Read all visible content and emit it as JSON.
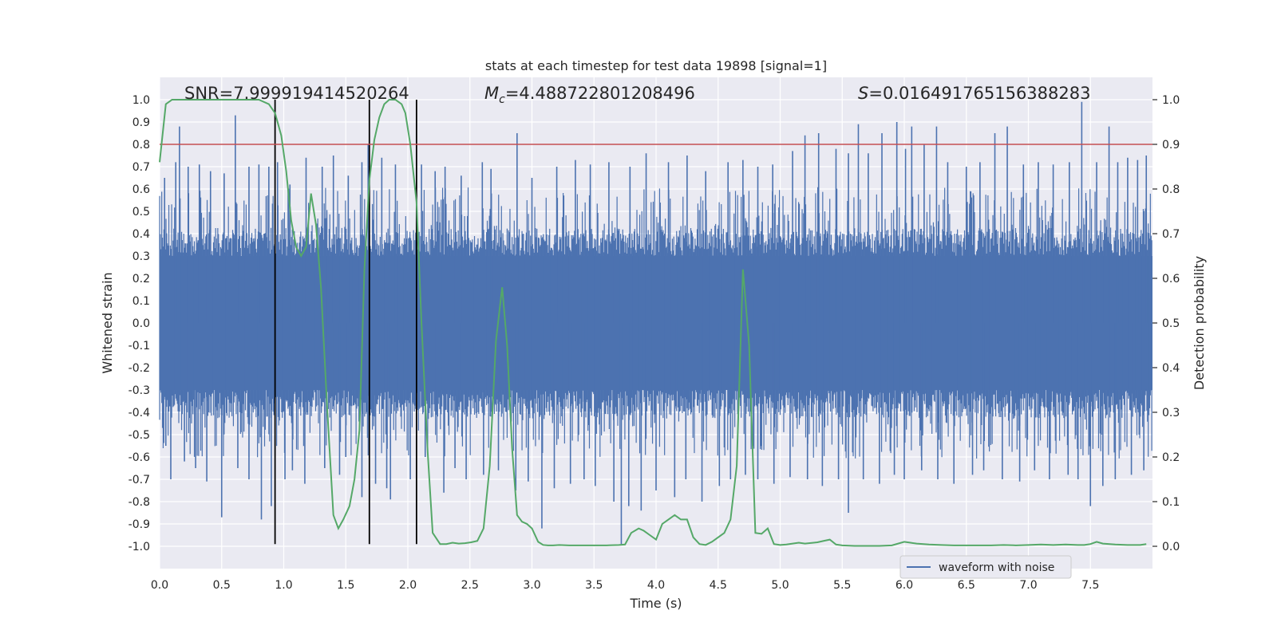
{
  "chart_data": {
    "type": "line",
    "title": "stats at each timestep for test data 19898 [signal=1]",
    "xlabel": "Time (s)",
    "ylabel_left": "Whitened strain",
    "ylabel_right": "Detection probability",
    "xlim": [
      0.0,
      8.0
    ],
    "ylim_left": [
      -1.1,
      1.1
    ],
    "ylim_right": [
      -0.05,
      1.05
    ],
    "xticks": [
      "0.0",
      "0.5",
      "1.0",
      "1.5",
      "2.0",
      "2.5",
      "3.0",
      "3.5",
      "4.0",
      "4.5",
      "5.0",
      "5.5",
      "6.0",
      "6.5",
      "7.0",
      "7.5"
    ],
    "xtick_values": [
      0.0,
      0.5,
      1.0,
      1.5,
      2.0,
      2.5,
      3.0,
      3.5,
      4.0,
      4.5,
      5.0,
      5.5,
      6.0,
      6.5,
      7.0,
      7.5
    ],
    "yticks_left": [
      "1.0",
      "0.9",
      "0.8",
      "0.7",
      "0.6",
      "0.5",
      "0.4",
      "0.3",
      "0.2",
      "0.1",
      "0.0",
      "-0.1",
      "-0.2",
      "-0.3",
      "-0.4",
      "-0.5",
      "-0.6",
      "-0.7",
      "-0.8",
      "-0.9",
      "-1.0"
    ],
    "ytick_values_left": [
      1.0,
      0.9,
      0.8,
      0.7,
      0.6,
      0.5,
      0.4,
      0.3,
      0.2,
      0.1,
      0.0,
      -0.1,
      -0.2,
      -0.3,
      -0.4,
      -0.5,
      -0.6,
      -0.7,
      -0.8,
      -0.9,
      -1.0
    ],
    "yticks_right": [
      "1.0",
      "0.9",
      "0.8",
      "0.7",
      "0.6",
      "0.5",
      "0.4",
      "0.3",
      "0.2",
      "0.1",
      "0.0"
    ],
    "ytick_values_right": [
      1.0,
      0.9,
      0.8,
      0.7,
      0.6,
      0.5,
      0.4,
      0.3,
      0.2,
      0.1,
      0.0
    ],
    "grid": true,
    "legend": {
      "entries": [
        "waveform with noise"
      ],
      "placement": "lower-right"
    },
    "annotations": {
      "snr": "SNR=7.999919414520264",
      "mc_symbol": "M",
      "mc_sub": "c",
      "mc_value": "=4.488722801208496",
      "s_symbol": "S",
      "s_value": "=0.016491765156388283"
    },
    "threshold": {
      "value": 0.8,
      "axis": "left",
      "color": "#c44e52"
    },
    "vertical_lines": [
      0.93,
      1.69,
      2.07
    ],
    "vertical_line_range": [
      -0.99,
      1.0
    ],
    "series": [
      {
        "name": "waveform with noise",
        "axis": "left",
        "color": "#4c72b0",
        "description_kind": "noise-band",
        "band_upper": 0.38,
        "band_lower": -0.37,
        "spikes_positive": [
          [
            0.04,
            0.65
          ],
          [
            0.13,
            0.72
          ],
          [
            0.16,
            0.88
          ],
          [
            0.23,
            0.7
          ],
          [
            0.32,
            0.71
          ],
          [
            0.41,
            0.68
          ],
          [
            0.52,
            0.67
          ],
          [
            0.61,
            0.93
          ],
          [
            0.72,
            0.7
          ],
          [
            0.8,
            0.71
          ],
          [
            0.88,
            0.7
          ],
          [
            0.95,
            0.72
          ],
          [
            1.05,
            0.62
          ],
          [
            1.18,
            0.74
          ],
          [
            1.31,
            0.7
          ],
          [
            1.4,
            0.75
          ],
          [
            1.52,
            0.66
          ],
          [
            1.63,
            0.72
          ],
          [
            1.68,
            0.8
          ],
          [
            1.79,
            0.74
          ],
          [
            1.9,
            0.71
          ],
          [
            2.11,
            0.71
          ],
          [
            2.22,
            0.68
          ],
          [
            2.3,
            0.7
          ],
          [
            2.43,
            0.66
          ],
          [
            2.6,
            0.72
          ],
          [
            2.67,
            0.69
          ],
          [
            2.88,
            0.85
          ],
          [
            3.0,
            0.65
          ],
          [
            3.2,
            0.7
          ],
          [
            3.35,
            0.73
          ],
          [
            3.47,
            0.71
          ],
          [
            3.62,
            0.72
          ],
          [
            3.79,
            0.7
          ],
          [
            3.92,
            0.76
          ],
          [
            4.1,
            0.72
          ],
          [
            4.25,
            0.75
          ],
          [
            4.4,
            0.68
          ],
          [
            4.58,
            0.72
          ],
          [
            4.7,
            0.73
          ],
          [
            4.82,
            0.7
          ],
          [
            4.94,
            0.71
          ],
          [
            5.1,
            0.77
          ],
          [
            5.2,
            0.84
          ],
          [
            5.31,
            0.85
          ],
          [
            5.45,
            0.78
          ],
          [
            5.55,
            0.76
          ],
          [
            5.63,
            0.89
          ],
          [
            5.71,
            0.76
          ],
          [
            5.82,
            0.85
          ],
          [
            5.94,
            0.9
          ],
          [
            6.01,
            0.78
          ],
          [
            6.06,
            0.88
          ],
          [
            6.16,
            0.8
          ],
          [
            6.26,
            0.88
          ],
          [
            6.35,
            0.72
          ],
          [
            6.5,
            0.7
          ],
          [
            6.61,
            0.72
          ],
          [
            6.73,
            0.85
          ],
          [
            6.83,
            0.88
          ],
          [
            6.96,
            0.71
          ],
          [
            7.08,
            0.72
          ],
          [
            7.2,
            0.71
          ],
          [
            7.33,
            0.72
          ],
          [
            7.43,
            0.99
          ],
          [
            7.55,
            0.72
          ],
          [
            7.65,
            0.88
          ],
          [
            7.72,
            0.72
          ],
          [
            7.8,
            0.74
          ],
          [
            7.88,
            0.73
          ],
          [
            7.95,
            0.75
          ]
        ],
        "spikes_negative": [
          [
            0.05,
            -0.55
          ],
          [
            0.09,
            -0.7
          ],
          [
            0.2,
            -0.62
          ],
          [
            0.29,
            -0.65
          ],
          [
            0.38,
            -0.71
          ],
          [
            0.5,
            -0.87
          ],
          [
            0.63,
            -0.65
          ],
          [
            0.72,
            -0.7
          ],
          [
            0.82,
            -0.88
          ],
          [
            0.9,
            -0.82
          ],
          [
            1.01,
            -0.7
          ],
          [
            1.07,
            -0.66
          ],
          [
            1.17,
            -0.72
          ],
          [
            1.33,
            -0.65
          ],
          [
            1.45,
            -0.68
          ],
          [
            1.5,
            -0.6
          ],
          [
            1.63,
            -0.78
          ],
          [
            1.74,
            -0.72
          ],
          [
            1.83,
            -0.74
          ],
          [
            1.86,
            -0.79
          ],
          [
            2.02,
            -0.7
          ],
          [
            2.14,
            -0.6
          ],
          [
            2.29,
            -0.76
          ],
          [
            2.38,
            -0.65
          ],
          [
            2.47,
            -0.7
          ],
          [
            2.61,
            -0.68
          ],
          [
            2.73,
            -0.66
          ],
          [
            2.87,
            -0.75
          ],
          [
            2.97,
            -0.71
          ],
          [
            3.08,
            -0.92
          ],
          [
            3.18,
            -0.74
          ],
          [
            3.31,
            -0.72
          ],
          [
            3.42,
            -0.7
          ],
          [
            3.51,
            -0.73
          ],
          [
            3.66,
            -0.8
          ],
          [
            3.72,
            -0.99
          ],
          [
            3.78,
            -0.82
          ],
          [
            3.88,
            -0.84
          ],
          [
            4.0,
            -0.75
          ],
          [
            4.15,
            -0.78
          ],
          [
            4.24,
            -0.7
          ],
          [
            4.37,
            -0.8
          ],
          [
            4.51,
            -0.73
          ],
          [
            4.6,
            -0.7
          ],
          [
            4.72,
            -0.68
          ],
          [
            4.82,
            -0.7
          ],
          [
            4.95,
            -0.72
          ],
          [
            5.08,
            -0.69
          ],
          [
            5.22,
            -0.7
          ],
          [
            5.34,
            -0.73
          ],
          [
            5.47,
            -0.7
          ],
          [
            5.55,
            -0.85
          ],
          [
            5.67,
            -0.7
          ],
          [
            5.8,
            -0.72
          ],
          [
            5.92,
            -0.68
          ],
          [
            6.0,
            -0.7
          ],
          [
            6.14,
            -0.66
          ],
          [
            6.27,
            -0.7
          ],
          [
            6.4,
            -0.72
          ],
          [
            6.55,
            -0.68
          ],
          [
            6.64,
            -0.66
          ],
          [
            6.79,
            -0.7
          ],
          [
            6.93,
            -0.71
          ],
          [
            7.05,
            -0.66
          ],
          [
            7.17,
            -0.7
          ],
          [
            7.32,
            -0.68
          ],
          [
            7.4,
            -0.7
          ],
          [
            7.5,
            -0.82
          ],
          [
            7.6,
            -0.73
          ],
          [
            7.7,
            -0.7
          ],
          [
            7.83,
            -0.68
          ],
          [
            7.93,
            -0.66
          ]
        ]
      },
      {
        "name": "",
        "axis": "right",
        "color": "#55a868",
        "x": [
          0.0,
          0.05,
          0.1,
          0.15,
          0.2,
          0.3,
          0.4,
          0.5,
          0.6,
          0.7,
          0.8,
          0.88,
          0.93,
          0.98,
          1.02,
          1.06,
          1.1,
          1.14,
          1.18,
          1.22,
          1.26,
          1.3,
          1.35,
          1.4,
          1.44,
          1.48,
          1.53,
          1.57,
          1.61,
          1.65,
          1.69,
          1.73,
          1.77,
          1.81,
          1.85,
          1.9,
          1.95,
          1.98,
          2.02,
          2.07,
          2.11,
          2.16,
          2.2,
          2.26,
          2.31,
          2.36,
          2.41,
          2.46,
          2.51,
          2.56,
          2.61,
          2.66,
          2.71,
          2.76,
          2.8,
          2.84,
          2.88,
          2.92,
          2.96,
          3.0,
          3.05,
          3.09,
          3.13,
          3.17,
          3.22,
          3.3,
          3.4,
          3.5,
          3.6,
          3.7,
          3.75,
          3.8,
          3.86,
          3.9,
          3.95,
          4.0,
          4.05,
          4.1,
          4.15,
          4.2,
          4.25,
          4.3,
          4.35,
          4.4,
          4.45,
          4.5,
          4.55,
          4.6,
          4.65,
          4.7,
          4.75,
          4.8,
          4.85,
          4.9,
          4.95,
          5.0,
          5.05,
          5.1,
          5.15,
          5.2,
          5.3,
          5.35,
          5.4,
          5.45,
          5.5,
          5.6,
          5.7,
          5.8,
          5.9,
          6.0,
          6.05,
          6.1,
          6.2,
          6.3,
          6.4,
          6.5,
          6.6,
          6.7,
          6.8,
          6.9,
          7.0,
          7.1,
          7.2,
          7.3,
          7.4,
          7.45,
          7.5,
          7.55,
          7.6,
          7.7,
          7.8,
          7.9,
          7.95
        ],
        "y": [
          0.86,
          0.99,
          1.0,
          1.0,
          1.0,
          1.0,
          1.0,
          1.0,
          1.0,
          1.0,
          1.0,
          0.99,
          0.97,
          0.92,
          0.84,
          0.73,
          0.67,
          0.65,
          0.67,
          0.79,
          0.72,
          0.58,
          0.31,
          0.07,
          0.04,
          0.06,
          0.09,
          0.15,
          0.26,
          0.62,
          0.82,
          0.91,
          0.96,
          0.99,
          1.0,
          1.0,
          0.99,
          0.97,
          0.9,
          0.77,
          0.5,
          0.21,
          0.03,
          0.005,
          0.005,
          0.008,
          0.006,
          0.007,
          0.009,
          0.012,
          0.04,
          0.18,
          0.46,
          0.58,
          0.45,
          0.22,
          0.07,
          0.055,
          0.05,
          0.04,
          0.01,
          0.003,
          0.002,
          0.002,
          0.003,
          0.002,
          0.002,
          0.002,
          0.002,
          0.003,
          0.004,
          0.03,
          0.04,
          0.035,
          0.025,
          0.015,
          0.05,
          0.06,
          0.07,
          0.06,
          0.06,
          0.02,
          0.005,
          0.003,
          0.01,
          0.02,
          0.03,
          0.06,
          0.18,
          0.62,
          0.45,
          0.03,
          0.028,
          0.04,
          0.005,
          0.003,
          0.004,
          0.006,
          0.008,
          0.006,
          0.009,
          0.012,
          0.015,
          0.004,
          0.002,
          0.001,
          0.001,
          0.001,
          0.002,
          0.01,
          0.008,
          0.006,
          0.004,
          0.003,
          0.002,
          0.002,
          0.002,
          0.002,
          0.003,
          0.002,
          0.003,
          0.004,
          0.003,
          0.004,
          0.003,
          0.003,
          0.005,
          0.01,
          0.006,
          0.004,
          0.003,
          0.003,
          0.005
        ]
      }
    ],
    "colors": {
      "plot_bg": "#eaeaf2",
      "grid": "#ffffff",
      "waveform": "#4c72b0",
      "probability": "#55a868",
      "threshold": "#c44e52",
      "vlines": "#000000"
    }
  }
}
